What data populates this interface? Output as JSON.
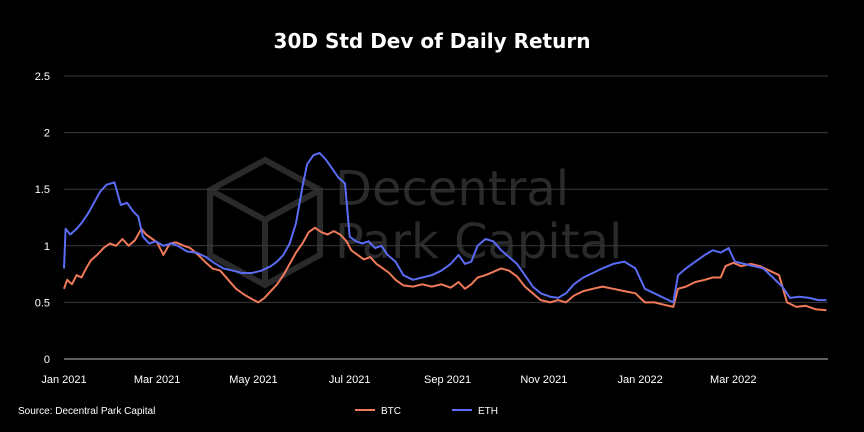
{
  "chart_data": {
    "type": "line",
    "title": "30D Std Dev of Daily Return",
    "source": "Source: Decentral Park Capital",
    "watermark": [
      "Decentral",
      "Park Capital"
    ],
    "xlabel": "",
    "ylabel": "",
    "ylim": [
      0,
      2.5
    ],
    "yticks": [
      "0",
      "0.5",
      "1",
      "1.5",
      "2",
      "2.5"
    ],
    "xticks": [
      {
        "label": "Jan 2021",
        "x": "2021-01-01"
      },
      {
        "label": "Mar 2021",
        "x": "2021-03-01"
      },
      {
        "label": "May 2021",
        "x": "2021-05-01"
      },
      {
        "label": "Jul 2021",
        "x": "2021-07-01"
      },
      {
        "label": "Sep 2021",
        "x": "2021-09-01"
      },
      {
        "label": "Nov 2021",
        "x": "2021-11-01"
      },
      {
        "label": "Jan 2022",
        "x": "2022-01-01"
      },
      {
        "label": "Mar 2022",
        "x": "2022-03-01"
      }
    ],
    "xlim": [
      "2021-01-01",
      "2022-04-30"
    ],
    "grid": "horizontal",
    "legend_position": "bottom-center",
    "series": [
      {
        "name": "BTC",
        "color": "#f07a5a",
        "points": [
          [
            "2021-01-01",
            0.62
          ],
          [
            "2021-01-03",
            0.7
          ],
          [
            "2021-01-06",
            0.66
          ],
          [
            "2021-01-09",
            0.74
          ],
          [
            "2021-01-12",
            0.72
          ],
          [
            "2021-01-15",
            0.8
          ],
          [
            "2021-01-18",
            0.87
          ],
          [
            "2021-01-22",
            0.92
          ],
          [
            "2021-01-26",
            0.98
          ],
          [
            "2021-01-30",
            1.02
          ],
          [
            "2021-02-03",
            1.0
          ],
          [
            "2021-02-07",
            1.06
          ],
          [
            "2021-02-11",
            1.0
          ],
          [
            "2021-02-15",
            1.05
          ],
          [
            "2021-02-19",
            1.15
          ],
          [
            "2021-02-22",
            1.1
          ],
          [
            "2021-02-26",
            1.06
          ],
          [
            "2021-03-01",
            1.03
          ],
          [
            "2021-03-05",
            0.92
          ],
          [
            "2021-03-09",
            1.02
          ],
          [
            "2021-03-13",
            1.03
          ],
          [
            "2021-03-18",
            1.0
          ],
          [
            "2021-03-22",
            0.98
          ],
          [
            "2021-03-27",
            0.92
          ],
          [
            "2021-04-01",
            0.85
          ],
          [
            "2021-04-05",
            0.8
          ],
          [
            "2021-04-10",
            0.78
          ],
          [
            "2021-04-15",
            0.7
          ],
          [
            "2021-04-20",
            0.62
          ],
          [
            "2021-04-25",
            0.57
          ],
          [
            "2021-04-30",
            0.53
          ],
          [
            "2021-05-04",
            0.5
          ],
          [
            "2021-05-08",
            0.54
          ],
          [
            "2021-05-12",
            0.6
          ],
          [
            "2021-05-16",
            0.66
          ],
          [
            "2021-05-20",
            0.74
          ],
          [
            "2021-05-24",
            0.84
          ],
          [
            "2021-05-28",
            0.94
          ],
          [
            "2021-06-01",
            1.02
          ],
          [
            "2021-06-05",
            1.12
          ],
          [
            "2021-06-09",
            1.16
          ],
          [
            "2021-06-13",
            1.12
          ],
          [
            "2021-06-17",
            1.1
          ],
          [
            "2021-06-21",
            1.13
          ],
          [
            "2021-06-25",
            1.1
          ],
          [
            "2021-06-29",
            1.04
          ],
          [
            "2021-07-02",
            0.96
          ],
          [
            "2021-07-06",
            0.92
          ],
          [
            "2021-07-10",
            0.88
          ],
          [
            "2021-07-14",
            0.9
          ],
          [
            "2021-07-18",
            0.84
          ],
          [
            "2021-07-22",
            0.8
          ],
          [
            "2021-07-26",
            0.76
          ],
          [
            "2021-07-30",
            0.7
          ],
          [
            "2021-08-04",
            0.65
          ],
          [
            "2021-08-10",
            0.64
          ],
          [
            "2021-08-16",
            0.66
          ],
          [
            "2021-08-22",
            0.64
          ],
          [
            "2021-08-28",
            0.66
          ],
          [
            "2021-09-03",
            0.63
          ],
          [
            "2021-09-08",
            0.68
          ],
          [
            "2021-09-12",
            0.62
          ],
          [
            "2021-09-16",
            0.66
          ],
          [
            "2021-09-20",
            0.72
          ],
          [
            "2021-09-25",
            0.74
          ],
          [
            "2021-09-30",
            0.77
          ],
          [
            "2021-10-05",
            0.8
          ],
          [
            "2021-10-10",
            0.78
          ],
          [
            "2021-10-15",
            0.73
          ],
          [
            "2021-10-20",
            0.64
          ],
          [
            "2021-10-25",
            0.58
          ],
          [
            "2021-10-30",
            0.52
          ],
          [
            "2021-11-05",
            0.5
          ],
          [
            "2021-11-10",
            0.52
          ],
          [
            "2021-11-15",
            0.5
          ],
          [
            "2021-11-20",
            0.56
          ],
          [
            "2021-11-26",
            0.6
          ],
          [
            "2021-12-02",
            0.62
          ],
          [
            "2021-12-08",
            0.64
          ],
          [
            "2021-12-15",
            0.62
          ],
          [
            "2021-12-22",
            0.6
          ],
          [
            "2021-12-29",
            0.58
          ],
          [
            "2022-01-04",
            0.5
          ],
          [
            "2022-01-10",
            0.5
          ],
          [
            "2022-01-16",
            0.48
          ],
          [
            "2022-01-22",
            0.46
          ],
          [
            "2022-01-25",
            0.62
          ],
          [
            "2022-01-30",
            0.64
          ],
          [
            "2022-02-05",
            0.68
          ],
          [
            "2022-02-11",
            0.7
          ],
          [
            "2022-02-16",
            0.72
          ],
          [
            "2022-02-21",
            0.72
          ],
          [
            "2022-02-24",
            0.82
          ],
          [
            "2022-03-01",
            0.85
          ],
          [
            "2022-03-06",
            0.82
          ],
          [
            "2022-03-12",
            0.84
          ],
          [
            "2022-03-18",
            0.82
          ],
          [
            "2022-03-24",
            0.78
          ],
          [
            "2022-03-30",
            0.74
          ],
          [
            "2022-04-04",
            0.5
          ],
          [
            "2022-04-10",
            0.46
          ],
          [
            "2022-04-16",
            0.47
          ],
          [
            "2022-04-22",
            0.44
          ],
          [
            "2022-04-29",
            0.43
          ]
        ]
      },
      {
        "name": "ETH",
        "color": "#5b6cf4",
        "points": [
          [
            "2021-01-01",
            0.8
          ],
          [
            "2021-01-02",
            1.15
          ],
          [
            "2021-01-05",
            1.1
          ],
          [
            "2021-01-09",
            1.15
          ],
          [
            "2021-01-12",
            1.2
          ],
          [
            "2021-01-16",
            1.28
          ],
          [
            "2021-01-20",
            1.38
          ],
          [
            "2021-01-24",
            1.48
          ],
          [
            "2021-01-28",
            1.54
          ],
          [
            "2021-02-02",
            1.56
          ],
          [
            "2021-02-06",
            1.36
          ],
          [
            "2021-02-10",
            1.38
          ],
          [
            "2021-02-14",
            1.3
          ],
          [
            "2021-02-17",
            1.26
          ],
          [
            "2021-02-20",
            1.08
          ],
          [
            "2021-02-24",
            1.02
          ],
          [
            "2021-02-28",
            1.04
          ],
          [
            "2021-03-05",
            1.0
          ],
          [
            "2021-03-10",
            1.02
          ],
          [
            "2021-03-14",
            1.0
          ],
          [
            "2021-03-20",
            0.95
          ],
          [
            "2021-03-26",
            0.94
          ],
          [
            "2021-04-01",
            0.9
          ],
          [
            "2021-04-06",
            0.85
          ],
          [
            "2021-04-12",
            0.8
          ],
          [
            "2021-04-18",
            0.78
          ],
          [
            "2021-04-24",
            0.76
          ],
          [
            "2021-04-30",
            0.76
          ],
          [
            "2021-05-06",
            0.78
          ],
          [
            "2021-05-12",
            0.82
          ],
          [
            "2021-05-16",
            0.86
          ],
          [
            "2021-05-20",
            0.92
          ],
          [
            "2021-05-24",
            1.02
          ],
          [
            "2021-05-28",
            1.2
          ],
          [
            "2021-06-01",
            1.52
          ],
          [
            "2021-06-04",
            1.72
          ],
          [
            "2021-06-08",
            1.8
          ],
          [
            "2021-06-12",
            1.82
          ],
          [
            "2021-06-16",
            1.76
          ],
          [
            "2021-06-20",
            1.68
          ],
          [
            "2021-06-24",
            1.6
          ],
          [
            "2021-06-28",
            1.55
          ],
          [
            "2021-07-01",
            1.08
          ],
          [
            "2021-07-05",
            1.04
          ],
          [
            "2021-07-09",
            1.02
          ],
          [
            "2021-07-13",
            1.04
          ],
          [
            "2021-07-17",
            0.98
          ],
          [
            "2021-07-21",
            1.0
          ],
          [
            "2021-07-25",
            0.92
          ],
          [
            "2021-07-30",
            0.86
          ],
          [
            "2021-08-04",
            0.74
          ],
          [
            "2021-08-10",
            0.7
          ],
          [
            "2021-08-16",
            0.72
          ],
          [
            "2021-08-22",
            0.74
          ],
          [
            "2021-08-28",
            0.78
          ],
          [
            "2021-09-03",
            0.84
          ],
          [
            "2021-09-08",
            0.92
          ],
          [
            "2021-09-12",
            0.84
          ],
          [
            "2021-09-16",
            0.86
          ],
          [
            "2021-09-20",
            1.0
          ],
          [
            "2021-09-25",
            1.06
          ],
          [
            "2021-09-30",
            1.04
          ],
          [
            "2021-10-05",
            0.96
          ],
          [
            "2021-10-10",
            0.9
          ],
          [
            "2021-10-15",
            0.84
          ],
          [
            "2021-10-20",
            0.74
          ],
          [
            "2021-10-25",
            0.64
          ],
          [
            "2021-10-30",
            0.58
          ],
          [
            "2021-11-05",
            0.55
          ],
          [
            "2021-11-10",
            0.54
          ],
          [
            "2021-11-15",
            0.58
          ],
          [
            "2021-11-20",
            0.66
          ],
          [
            "2021-11-26",
            0.72
          ],
          [
            "2021-12-02",
            0.76
          ],
          [
            "2021-12-08",
            0.8
          ],
          [
            "2021-12-15",
            0.84
          ],
          [
            "2021-12-22",
            0.86
          ],
          [
            "2021-12-29",
            0.8
          ],
          [
            "2022-01-04",
            0.62
          ],
          [
            "2022-01-10",
            0.58
          ],
          [
            "2022-01-16",
            0.54
          ],
          [
            "2022-01-22",
            0.5
          ],
          [
            "2022-01-25",
            0.74
          ],
          [
            "2022-01-30",
            0.8
          ],
          [
            "2022-02-05",
            0.86
          ],
          [
            "2022-02-11",
            0.92
          ],
          [
            "2022-02-16",
            0.96
          ],
          [
            "2022-02-21",
            0.94
          ],
          [
            "2022-02-26",
            0.98
          ],
          [
            "2022-03-02",
            0.86
          ],
          [
            "2022-03-08",
            0.84
          ],
          [
            "2022-03-14",
            0.82
          ],
          [
            "2022-03-20",
            0.8
          ],
          [
            "2022-03-26",
            0.72
          ],
          [
            "2022-04-01",
            0.64
          ],
          [
            "2022-04-06",
            0.54
          ],
          [
            "2022-04-12",
            0.55
          ],
          [
            "2022-04-18",
            0.54
          ],
          [
            "2022-04-24",
            0.52
          ],
          [
            "2022-04-29",
            0.52
          ]
        ]
      }
    ]
  }
}
